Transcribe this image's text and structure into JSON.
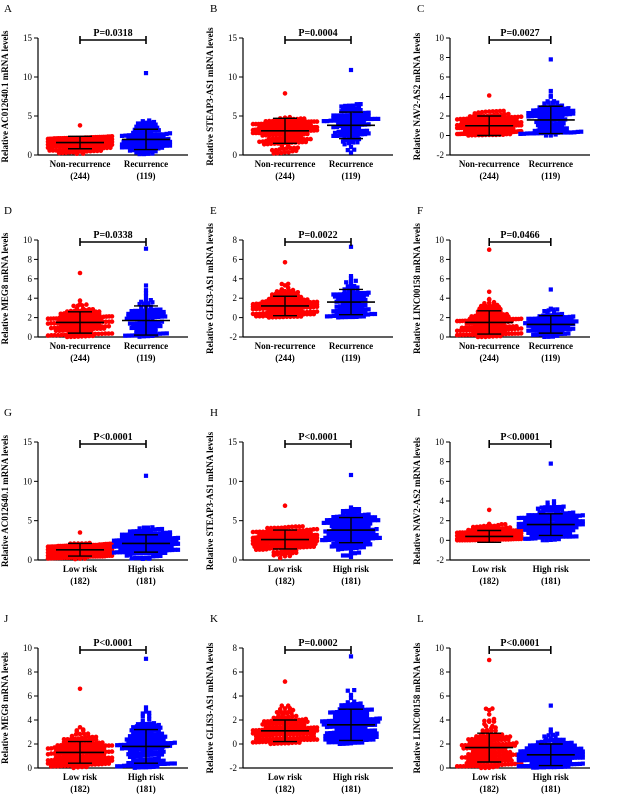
{
  "figure": {
    "panels": [
      {
        "letter": "A",
        "ylabel": "Relative AC012640.1 mRNA levels",
        "p": "P=0.0318"
      },
      {
        "letter": "B",
        "ylabel": "Relative STEAP3-AS1 mRNA levels",
        "p": "P=0.0004"
      },
      {
        "letter": "C",
        "ylabel": "Relative NAV2-AS2 mRNA levels",
        "p": "P=0.0027"
      },
      {
        "letter": "D",
        "ylabel": "Relative MEG8 mRNA levels",
        "p": "P=0.0338"
      },
      {
        "letter": "E",
        "ylabel": "Relative GLIS3-AS1 mRNA levels",
        "p": "P=0.0022"
      },
      {
        "letter": "F",
        "ylabel": "Relative LINC00158 mRNA levels",
        "p": "P=0.0466"
      },
      {
        "letter": "G",
        "ylabel": "Relative AC012640.1 mRNA levels",
        "p": "P<0.0001"
      },
      {
        "letter": "H",
        "ylabel": "Relative STEAP3-AS1 mRNA levels",
        "p": "P<0.0001"
      },
      {
        "letter": "I",
        "ylabel": "Relative NAV2-AS2 mRNA levels",
        "p": "P<0.0001"
      },
      {
        "letter": "J",
        "ylabel": "Relative MEG8 mRNA levels",
        "p": "P<0.0001"
      },
      {
        "letter": "K",
        "ylabel": "Relative GLIS3-AS1 mRNA levels",
        "p": "P=0.0002"
      },
      {
        "letter": "L",
        "ylabel": "Relative LINC00158 mRNA levels",
        "p": "P<0.0001"
      }
    ]
  },
  "chart_data": [
    {
      "type": "scatter",
      "panel": "A",
      "ylabel": "Relative AC012640.1 mRNA levels",
      "annotation": "P=0.0318",
      "ylim": [
        0,
        15
      ],
      "yticks": [
        0,
        5,
        10,
        15
      ],
      "groups": [
        {
          "name": "Non-recurrence",
          "n": "(244)",
          "mean": 1.6,
          "sd": 0.8,
          "min": 0.1,
          "max": 3.8,
          "color": "#ff0000",
          "marker": "circle"
        },
        {
          "name": "Recurrence",
          "n": "(119)",
          "mean": 2.0,
          "sd": 1.3,
          "min": 0.1,
          "max": 10.5,
          "color": "#0000ff",
          "marker": "square"
        }
      ]
    },
    {
      "type": "scatter",
      "panel": "B",
      "ylabel": "Relative STEAP3-AS1 mRNA levels",
      "annotation": "P=0.0004",
      "ylim": [
        0,
        15
      ],
      "yticks": [
        0,
        5,
        10,
        15
      ],
      "groups": [
        {
          "name": "Non-recurrence",
          "n": "(244)",
          "mean": 3.1,
          "sd": 1.6,
          "min": 0.2,
          "max": 7.9,
          "color": "#ff0000",
          "marker": "circle"
        },
        {
          "name": "Recurrence",
          "n": "(119)",
          "mean": 3.8,
          "sd": 1.7,
          "min": 0.3,
          "max": 10.9,
          "color": "#0000ff",
          "marker": "square"
        }
      ]
    },
    {
      "type": "scatter",
      "panel": "C",
      "ylabel": "Relative NAV2-AS2 mRNA levels",
      "annotation": "P=0.0027",
      "ylim": [
        -2,
        10
      ],
      "yticks": [
        -2,
        0,
        2,
        4,
        6,
        8,
        10
      ],
      "groups": [
        {
          "name": "Non-recurrence",
          "n": "(244)",
          "mean": 1.0,
          "sd": 1.0,
          "min": 0.0,
          "max": 4.1,
          "color": "#ff0000",
          "marker": "circle"
        },
        {
          "name": "Recurrence",
          "n": "(119)",
          "mean": 1.6,
          "sd": 1.4,
          "min": 0.0,
          "max": 7.8,
          "color": "#0000ff",
          "marker": "square"
        }
      ]
    },
    {
      "type": "scatter",
      "panel": "D",
      "ylabel": "Relative MEG8 mRNA levels",
      "annotation": "P=0.0338",
      "ylim": [
        0,
        10
      ],
      "yticks": [
        0,
        2,
        4,
        6,
        8,
        10
      ],
      "groups": [
        {
          "name": "Non-recurrence",
          "n": "(244)",
          "mean": 1.5,
          "sd": 1.1,
          "min": 0.0,
          "max": 6.6,
          "color": "#ff0000",
          "marker": "circle"
        },
        {
          "name": "Recurrence",
          "n": "(119)",
          "mean": 1.7,
          "sd": 1.5,
          "min": 0.0,
          "max": 9.1,
          "color": "#0000ff",
          "marker": "square"
        }
      ]
    },
    {
      "type": "scatter",
      "panel": "E",
      "ylabel": "Relative GLIS3-AS1 mRNA levels",
      "annotation": "P=0.0022",
      "ylim": [
        -2,
        8
      ],
      "yticks": [
        -2,
        0,
        2,
        4,
        6,
        8
      ],
      "groups": [
        {
          "name": "Non-recurrence",
          "n": "(244)",
          "mean": 1.2,
          "sd": 1.0,
          "min": 0.0,
          "max": 5.7,
          "color": "#ff0000",
          "marker": "circle"
        },
        {
          "name": "Recurrence",
          "n": "(119)",
          "mean": 1.6,
          "sd": 1.3,
          "min": 0.0,
          "max": 7.3,
          "color": "#0000ff",
          "marker": "square"
        }
      ]
    },
    {
      "type": "scatter",
      "panel": "F",
      "ylabel": "Relative LINC00158 mRNA levels",
      "annotation": "P=0.0466",
      "ylim": [
        0,
        10
      ],
      "yticks": [
        0,
        2,
        4,
        6,
        8,
        10
      ],
      "groups": [
        {
          "name": "Non-recurrence",
          "n": "(244)",
          "mean": 1.5,
          "sd": 1.2,
          "min": 0.0,
          "max": 9.0,
          "color": "#ff0000",
          "marker": "circle"
        },
        {
          "name": "Recurrence",
          "n": "(119)",
          "mean": 1.3,
          "sd": 0.9,
          "min": 0.0,
          "max": 4.9,
          "color": "#0000ff",
          "marker": "square"
        }
      ]
    },
    {
      "type": "scatter",
      "panel": "G",
      "ylabel": "Relative AC012640.1 mRNA levels",
      "annotation": "P<0.0001",
      "ylim": [
        0,
        15
      ],
      "yticks": [
        0,
        5,
        10,
        15
      ],
      "groups": [
        {
          "name": "Low risk",
          "n": "(182)",
          "mean": 1.3,
          "sd": 0.8,
          "min": 0.1,
          "max": 3.5,
          "color": "#ff0000",
          "marker": "circle"
        },
        {
          "name": "High risk",
          "n": "(181)",
          "mean": 2.1,
          "sd": 1.1,
          "min": 0.1,
          "max": 10.7,
          "color": "#0000ff",
          "marker": "square"
        }
      ]
    },
    {
      "type": "scatter",
      "panel": "H",
      "ylabel": "Relative STEAP3-AS1 mRNA levels",
      "annotation": "P<0.0001",
      "ylim": [
        0,
        15
      ],
      "yticks": [
        0,
        5,
        10,
        15
      ],
      "groups": [
        {
          "name": "Low risk",
          "n": "(182)",
          "mean": 2.6,
          "sd": 1.2,
          "min": 0.2,
          "max": 6.9,
          "color": "#ff0000",
          "marker": "circle"
        },
        {
          "name": "High risk",
          "n": "(181)",
          "mean": 3.8,
          "sd": 1.6,
          "min": 0.3,
          "max": 10.8,
          "color": "#0000ff",
          "marker": "square"
        }
      ]
    },
    {
      "type": "scatter",
      "panel": "I",
      "ylabel": "Relative NAV2-AS2 mRNA levels",
      "annotation": "P<0.0001",
      "ylim": [
        -2,
        10
      ],
      "yticks": [
        -2,
        0,
        2,
        4,
        6,
        8,
        10
      ],
      "groups": [
        {
          "name": "Low risk",
          "n": "(182)",
          "mean": 0.4,
          "sd": 0.6,
          "min": 0.0,
          "max": 3.1,
          "color": "#ff0000",
          "marker": "circle"
        },
        {
          "name": "High risk",
          "n": "(181)",
          "mean": 1.6,
          "sd": 1.1,
          "min": 0.0,
          "max": 7.8,
          "color": "#0000ff",
          "marker": "square"
        }
      ]
    },
    {
      "type": "scatter",
      "panel": "J",
      "ylabel": "Relative MEG8 mRNA levels",
      "annotation": "P<0.0001",
      "ylim": [
        0,
        10
      ],
      "yticks": [
        0,
        2,
        4,
        6,
        8,
        10
      ],
      "groups": [
        {
          "name": "Low risk",
          "n": "(182)",
          "mean": 1.3,
          "sd": 0.9,
          "min": 0.0,
          "max": 6.6,
          "color": "#ff0000",
          "marker": "circle"
        },
        {
          "name": "High risk",
          "n": "(181)",
          "mean": 1.8,
          "sd": 1.4,
          "min": 0.0,
          "max": 9.1,
          "color": "#0000ff",
          "marker": "square"
        }
      ]
    },
    {
      "type": "scatter",
      "panel": "K",
      "ylabel": "Relative GLIS3-AS1 mRNA levels",
      "annotation": "P=0.0002",
      "ylim": [
        -2,
        8
      ],
      "yticks": [
        -2,
        0,
        2,
        4,
        6,
        8
      ],
      "groups": [
        {
          "name": "Low risk",
          "n": "(182)",
          "mean": 1.1,
          "sd": 0.9,
          "min": 0.0,
          "max": 5.2,
          "color": "#ff0000",
          "marker": "circle"
        },
        {
          "name": "High risk",
          "n": "(181)",
          "mean": 1.6,
          "sd": 1.3,
          "min": 0.0,
          "max": 7.3,
          "color": "#0000ff",
          "marker": "square"
        }
      ]
    },
    {
      "type": "scatter",
      "panel": "L",
      "ylabel": "Relative LINC00158 mRNA levels",
      "annotation": "P<0.0001",
      "ylim": [
        0,
        10
      ],
      "yticks": [
        0,
        2,
        4,
        6,
        8,
        10
      ],
      "groups": [
        {
          "name": "Low risk",
          "n": "(182)",
          "mean": 1.7,
          "sd": 1.2,
          "min": 0.0,
          "max": 9.0,
          "color": "#ff0000",
          "marker": "circle"
        },
        {
          "name": "High risk",
          "n": "(181)",
          "mean": 1.1,
          "sd": 0.9,
          "min": 0.0,
          "max": 5.2,
          "color": "#0000ff",
          "marker": "square"
        }
      ]
    }
  ]
}
